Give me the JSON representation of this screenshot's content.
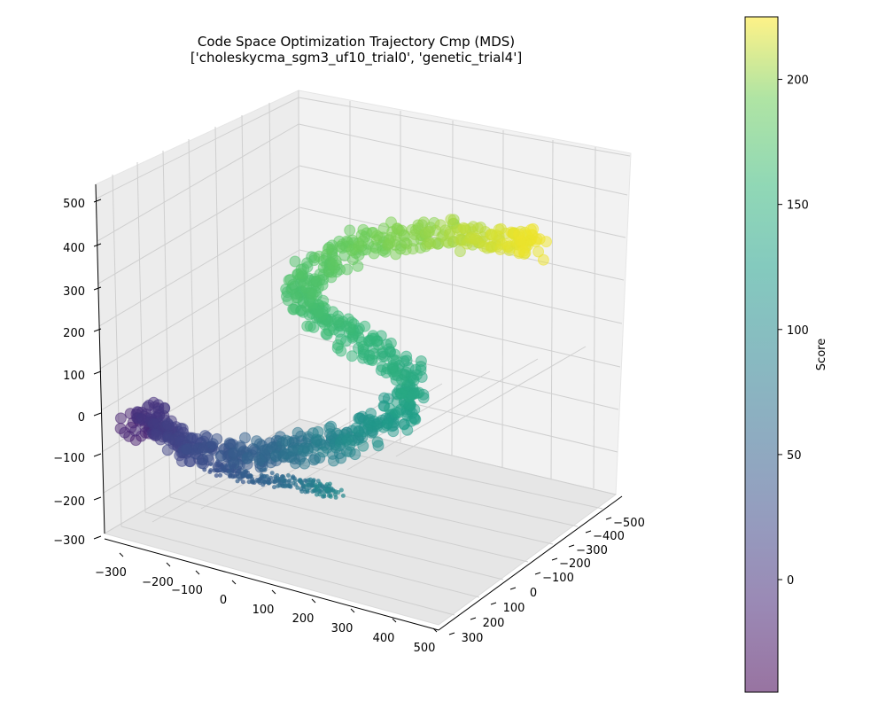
{
  "chart_data": {
    "type": "scatter",
    "projection": "3d",
    "title": "Code Space Optimization Trajectory Cmp (MDS)",
    "subtitle": "['choleskycma_sgm3_uf10_trial0', 'genetic_trial4']",
    "xlabel": "",
    "ylabel": "",
    "zlabel": "",
    "x_ticks": [
      "−300",
      "−200",
      "−100",
      "0",
      "100",
      "200",
      "300",
      "400",
      "500"
    ],
    "y_ticks": [
      "−500",
      "−400",
      "−300",
      "−200",
      "−100",
      "0",
      "100",
      "200",
      "300"
    ],
    "z_ticks": [
      "−300",
      "−200",
      "−100",
      "0",
      "100",
      "200",
      "300",
      "400",
      "500"
    ],
    "xlim": [
      -320,
      520
    ],
    "ylim": [
      -560,
      330
    ],
    "zlim": [
      -320,
      530
    ],
    "grid": true,
    "colorbar": {
      "label": "Score",
      "ticks": [
        "0",
        "50",
        "100",
        "150",
        "200"
      ],
      "tick_values": [
        0,
        50,
        100,
        150,
        200
      ],
      "range": [
        -45,
        225
      ],
      "colormap": "viridis"
    },
    "series": [
      {
        "name": "",
        "marker_size": "large",
        "description_points": [
          {
            "x": -280,
            "y": 250,
            "z": -60,
            "score": -20
          },
          {
            "x": -250,
            "y": 230,
            "z": -20,
            "score": 0
          },
          {
            "x": -230,
            "y": 200,
            "z": -70,
            "score": 10
          },
          {
            "x": -200,
            "y": 150,
            "z": -120,
            "score": 20
          },
          {
            "x": -160,
            "y": 100,
            "z": -140,
            "score": 30
          },
          {
            "x": -100,
            "y": 60,
            "z": -150,
            "score": 45
          },
          {
            "x": -40,
            "y": 20,
            "z": -130,
            "score": 60
          },
          {
            "x": 30,
            "y": -20,
            "z": -120,
            "score": 80
          },
          {
            "x": 100,
            "y": -60,
            "z": -90,
            "score": 100
          },
          {
            "x": 170,
            "y": -80,
            "z": -40,
            "score": 115
          },
          {
            "x": 230,
            "y": -90,
            "z": 20,
            "score": 130
          },
          {
            "x": 240,
            "y": -70,
            "z": 100,
            "score": 140
          },
          {
            "x": 180,
            "y": -40,
            "z": 160,
            "score": 150
          },
          {
            "x": 100,
            "y": -10,
            "z": 200,
            "score": 160
          },
          {
            "x": 40,
            "y": 10,
            "z": 240,
            "score": 165
          },
          {
            "x": 10,
            "y": 20,
            "z": 290,
            "score": 170
          },
          {
            "x": 40,
            "y": 0,
            "z": 350,
            "score": 175
          },
          {
            "x": 100,
            "y": -40,
            "z": 400,
            "score": 185
          },
          {
            "x": 170,
            "y": -100,
            "z": 430,
            "score": 195
          },
          {
            "x": 240,
            "y": -180,
            "z": 430,
            "score": 200
          },
          {
            "x": 300,
            "y": -270,
            "z": 400,
            "score": 210
          },
          {
            "x": 350,
            "y": -360,
            "z": 370,
            "score": 218
          },
          {
            "x": 380,
            "y": -430,
            "z": 340,
            "score": 222
          }
        ]
      },
      {
        "name": "",
        "marker_size": "small",
        "description_points": [
          {
            "x": -150,
            "y": 120,
            "z": -170,
            "score": 30
          },
          {
            "x": -90,
            "y": 80,
            "z": -190,
            "score": 45
          },
          {
            "x": -20,
            "y": 40,
            "z": -200,
            "score": 60
          },
          {
            "x": 40,
            "y": 10,
            "z": -210,
            "score": 80
          },
          {
            "x": 80,
            "y": -10,
            "z": -220,
            "score": 100
          }
        ]
      }
    ]
  }
}
